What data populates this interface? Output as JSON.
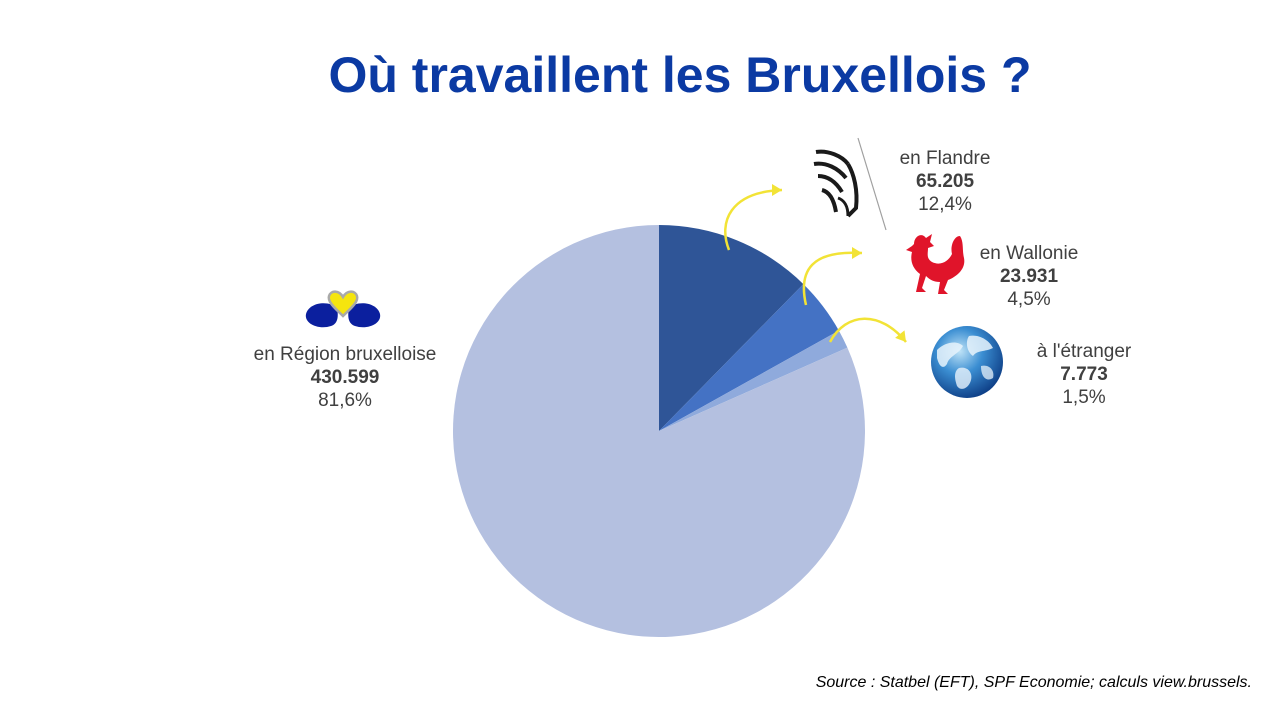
{
  "title": "Où travaillent les Bruxellois ?",
  "source": "Source : Statbel (EFT), SPF Economie; calculs view.brussels.",
  "chart_data": {
    "type": "pie",
    "title": "Où travaillent les Bruxellois ?",
    "slices": [
      {
        "label": "en Région bruxelloise",
        "value": 430599,
        "value_text": "430.599",
        "percent": 81.6,
        "percent_text": "81,6%",
        "color": "#b4c0e0",
        "icon": "brussels-iris-logo-icon"
      },
      {
        "label": "en Flandre",
        "value": 65205,
        "value_text": "65.205",
        "percent": 12.4,
        "percent_text": "12,4%",
        "color": "#2f5597",
        "icon": "flemish-lion-icon"
      },
      {
        "label": "en Wallonie",
        "value": 23931,
        "value_text": "23.931",
        "percent": 4.5,
        "percent_text": "4,5%",
        "color": "#4472c4",
        "icon": "walloon-rooster-icon"
      },
      {
        "label": "à l'étranger",
        "value": 7773,
        "value_text": "7.773",
        "percent": 1.5,
        "percent_text": "1,5%",
        "color": "#8faadc",
        "icon": "globe-icon"
      }
    ],
    "arrow_color": "#f2e336"
  }
}
